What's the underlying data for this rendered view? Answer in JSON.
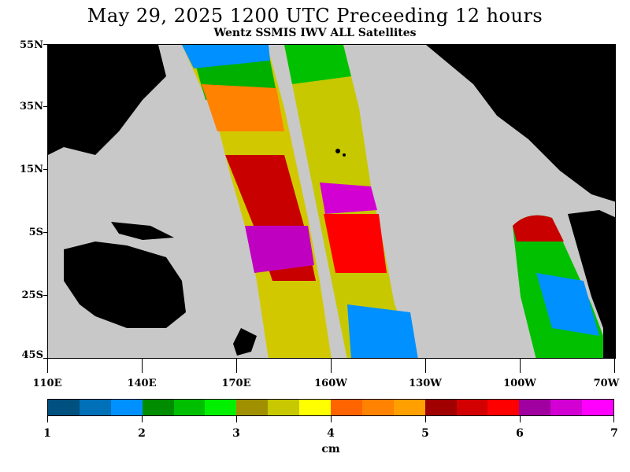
{
  "header": {
    "title": "May 29, 2025  1200 UTC Preceeding 12 hours",
    "subtitle": "Wentz SSMIS IWV ALL Satellites"
  },
  "map": {
    "lat_labels": [
      "55N",
      "35N",
      "15N",
      "5S",
      "25S",
      "45S"
    ],
    "lon_labels": [
      "110E",
      "140E",
      "170E",
      "160W",
      "130W",
      "100W",
      "70W"
    ],
    "colors": {
      "land": "#000000",
      "no_data": "#c8c8c8"
    }
  },
  "colorbar": {
    "unit": "cm",
    "tick_labels": [
      "1",
      "2",
      "3",
      "4",
      "5",
      "6",
      "7"
    ],
    "colors": [
      "#005080",
      "#0070b8",
      "#0090ff",
      "#008c00",
      "#00bf00",
      "#00f000",
      "#a09000",
      "#c8c800",
      "#ffff00",
      "#ff6400",
      "#ff8200",
      "#ffa000",
      "#a00000",
      "#d20000",
      "#ff0000",
      "#a000a0",
      "#d200d2",
      "#ff00ff"
    ]
  }
}
